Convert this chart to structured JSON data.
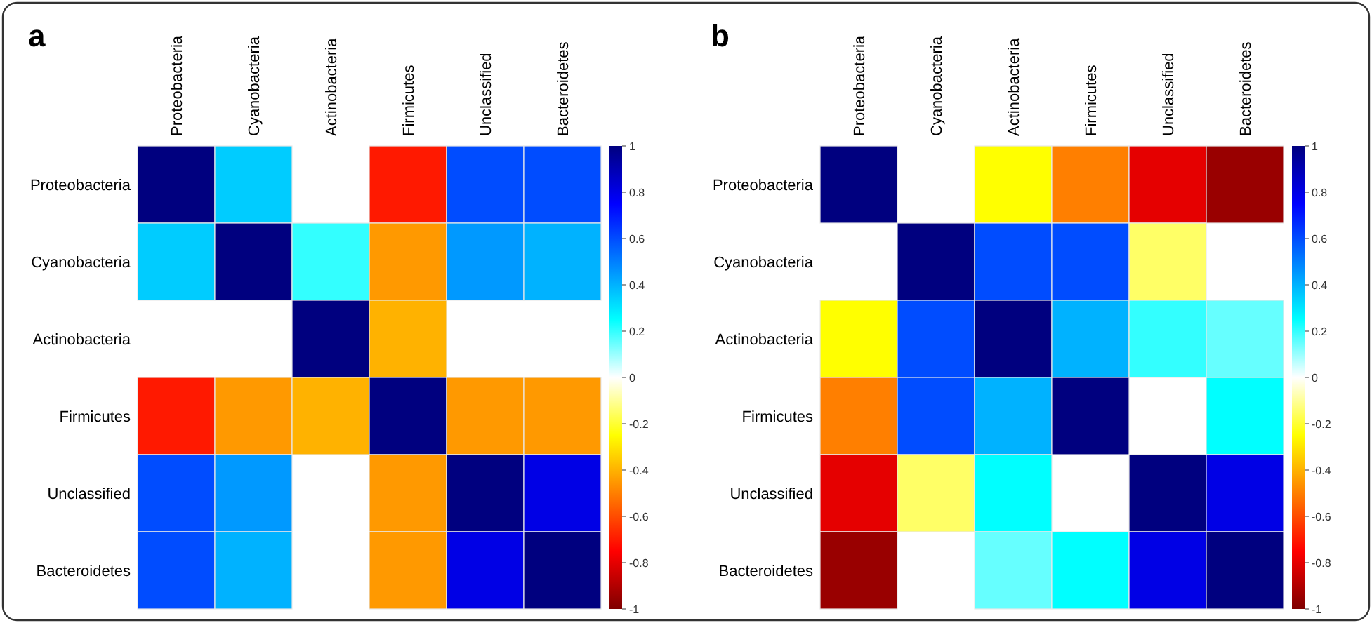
{
  "chart_data": [
    {
      "type": "heatmap",
      "title": "a",
      "categories": [
        "Proteobacteria",
        "Cyanobacteria",
        "Actinobacteria",
        "Firmicutes",
        "Unclassified",
        "Bacteroidetes"
      ],
      "y_categories": [
        "Proteobacteria",
        "Cyanobacteria",
        "Actinobacteria",
        "Firmicutes",
        "Unclassified",
        "Bacteroidetes"
      ],
      "cells": [
        [
          1,
          0.35,
          null,
          -0.7,
          0.6,
          0.6
        ],
        [
          0.35,
          1,
          0.2,
          -0.45,
          0.45,
          0.4
        ],
        [
          null,
          null,
          1,
          -0.4,
          null,
          null
        ],
        [
          -0.7,
          -0.45,
          -0.4,
          1,
          -0.45,
          -0.45
        ],
        [
          0.6,
          0.45,
          null,
          -0.45,
          1,
          0.8
        ],
        [
          0.6,
          0.4,
          null,
          -0.45,
          0.8,
          1
        ]
      ],
      "clim": [
        -1,
        1
      ],
      "cticks": [
        -1,
        -0.8,
        -0.6,
        -0.4,
        -0.2,
        0,
        0.2,
        0.4,
        0.6,
        0.8,
        1
      ]
    },
    {
      "type": "heatmap",
      "title": "b",
      "categories": [
        "Proteobacteria",
        "Cyanobacteria",
        "Actinobacteria",
        "Firmicutes",
        "Unclassified",
        "Bacteroidetes"
      ],
      "y_categories": [
        "Proteobacteria",
        "Cyanobacteria",
        "Actinobacteria",
        "Firmicutes",
        "Unclassified",
        "Bacteroidetes"
      ],
      "cells": [
        [
          1,
          null,
          -0.25,
          -0.5,
          -0.8,
          -0.95
        ],
        [
          null,
          1,
          0.6,
          0.6,
          -0.15,
          null
        ],
        [
          -0.25,
          0.6,
          1,
          0.4,
          0.2,
          0.15
        ],
        [
          -0.5,
          0.6,
          0.4,
          1,
          null,
          0.25
        ],
        [
          -0.8,
          -0.15,
          0.25,
          null,
          1,
          0.8
        ],
        [
          -0.95,
          null,
          0.15,
          0.25,
          0.8,
          1
        ]
      ],
      "clim": [
        -1,
        1
      ],
      "cticks": [
        -1,
        -0.8,
        -0.6,
        -0.4,
        -0.2,
        0,
        0.2,
        0.4,
        0.6,
        0.8,
        1
      ]
    }
  ]
}
